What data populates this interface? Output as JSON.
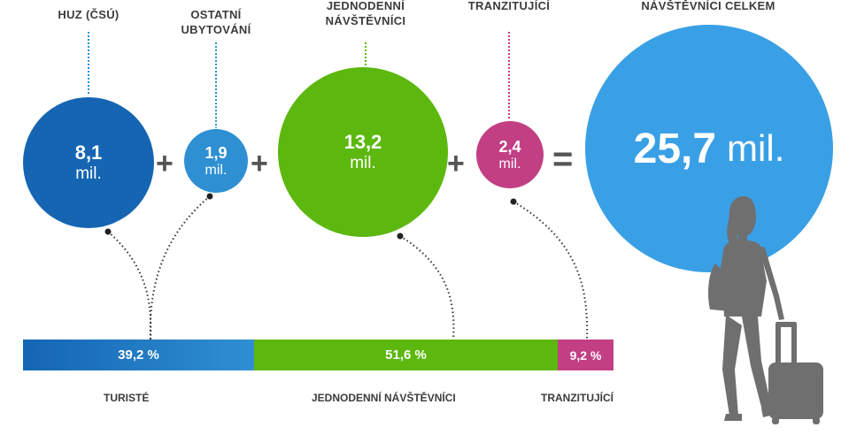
{
  "header_labels": {
    "huz": "HUZ (ČSÚ)",
    "ostatni_line1": "OSTATNÍ",
    "ostatni_line2": "UBYTOVÁNÍ",
    "jednodenni_line1": "JEDNODENNÍ",
    "jednodenni_line2": "NÁVŠTĚVNÍCI",
    "tranzitujici": "TRANZITUJÍCÍ",
    "celkem": "NÁVŠTĚVNÍCI CELKEM"
  },
  "circles": {
    "huz": {
      "value": "8,1",
      "unit": "mil."
    },
    "ostatni": {
      "value": "1,9",
      "unit": "mil."
    },
    "jednodenni": {
      "value": "13,2",
      "unit": "mil."
    },
    "tranzitujici": {
      "value": "2,4",
      "unit": "mil."
    },
    "celkem": {
      "value": "25,7",
      "unit": "mil."
    }
  },
  "operators": {
    "plus": "+",
    "equals": "="
  },
  "share_bar": {
    "turiste": {
      "label": "39,2 %",
      "share": 39.2
    },
    "jednodenni": {
      "label": "51,6 %",
      "share": 51.6
    },
    "tranzitujici": {
      "label": "9,2 %",
      "share": 9.2
    }
  },
  "footer_labels": {
    "turiste": "TURISTÉ",
    "jednodenni": "JEDNODENNÍ NÁVŠTĚVNÍCI",
    "tranzitujici": "TRANZITUJÍCÍ"
  },
  "colors": {
    "dark_blue": "#1565b3",
    "mid_blue": "#2f8fd3",
    "light_blue": "#3aa0e6",
    "green": "#5cb80f",
    "magenta": "#c23f84",
    "silhouette": "#6f6f6f"
  }
}
